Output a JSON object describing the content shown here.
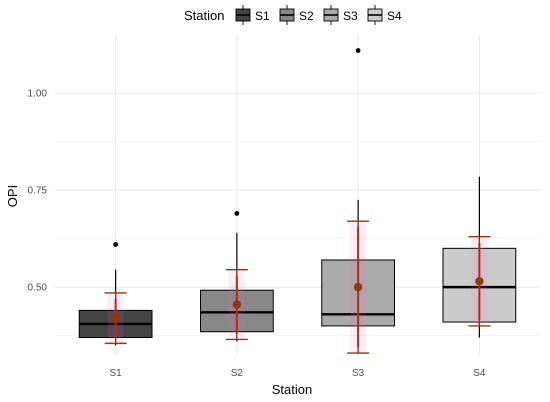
{
  "chart_data": {
    "type": "boxplot",
    "title": "",
    "xlabel": "Station",
    "ylabel": "OPI",
    "ylim": [
      0.325,
      1.15
    ],
    "yticks": [
      0.5,
      0.75,
      1.0
    ],
    "ytick_labels": [
      "0.50",
      "0.75",
      "1.00"
    ],
    "grid": true,
    "legend": {
      "title": "Station",
      "position": "top",
      "entries": [
        {
          "name": "S1",
          "color": "#444444"
        },
        {
          "name": "S2",
          "color": "#888888"
        },
        {
          "name": "S3",
          "color": "#aaaaaa"
        },
        {
          "name": "S4",
          "color": "#cccccc"
        }
      ]
    },
    "categories": [
      "S1",
      "S2",
      "S3",
      "S4"
    ],
    "boxes": [
      {
        "name": "S1",
        "q1": 0.37,
        "median": 0.405,
        "q3": 0.44,
        "whisker_low": 0.35,
        "whisker_high": 0.545,
        "outliers": [
          0.61
        ],
        "mean": 0.42,
        "mean_ci": [
          0.355,
          0.485
        ]
      },
      {
        "name": "S2",
        "q1": 0.385,
        "median": 0.435,
        "q3": 0.492,
        "whisker_low": 0.36,
        "whisker_high": 0.64,
        "outliers": [
          0.69
        ],
        "mean": 0.455,
        "mean_ci": [
          0.365,
          0.545
        ]
      },
      {
        "name": "S3",
        "q1": 0.4,
        "median": 0.43,
        "q3": 0.57,
        "whisker_low": 0.33,
        "whisker_high": 0.725,
        "outliers": [
          1.11
        ],
        "mean": 0.5,
        "mean_ci": [
          0.33,
          0.67
        ]
      },
      {
        "name": "S4",
        "q1": 0.41,
        "median": 0.5,
        "q3": 0.6,
        "whisker_low": 0.37,
        "whisker_high": 0.785,
        "outliers": [],
        "mean": 0.515,
        "mean_ci": [
          0.4,
          0.63
        ]
      }
    ],
    "colors": {
      "mean_point": "#8b3a0f",
      "ci_line": "#8b3a0f",
      "sd_line": "#e0202a",
      "glow": "#ff66cc"
    }
  }
}
